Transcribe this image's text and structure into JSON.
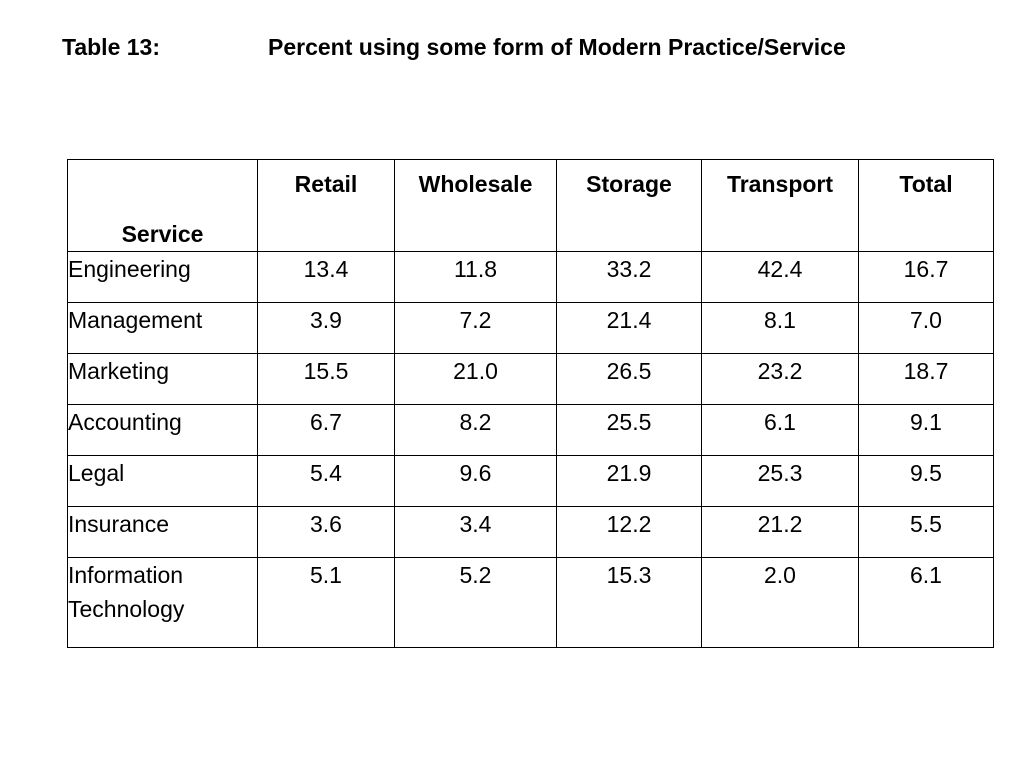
{
  "title": {
    "label": "Table 13:",
    "text": "Percent using some form of Modern Practice/Service"
  },
  "table": {
    "headers": [
      "Service",
      "Retail",
      "Wholesale",
      "Storage",
      "Transport",
      "Total"
    ],
    "rows": [
      {
        "label": "Engineering",
        "values": [
          "13.4",
          "11.8",
          "33.2",
          "42.4",
          "16.7"
        ]
      },
      {
        "label": "Management",
        "values": [
          "3.9",
          "7.2",
          "21.4",
          "8.1",
          "7.0"
        ]
      },
      {
        "label": "Marketing",
        "values": [
          "15.5",
          "21.0",
          "26.5",
          "23.2",
          "18.7"
        ]
      },
      {
        "label": "Accounting",
        "values": [
          "6.7",
          "8.2",
          "25.5",
          "6.1",
          "9.1"
        ]
      },
      {
        "label": "Legal",
        "values": [
          "5.4",
          "9.6",
          "21.9",
          "25.3",
          "9.5"
        ]
      },
      {
        "label": "Insurance",
        "values": [
          "3.6",
          "3.4",
          "12.2",
          "21.2",
          "5.5"
        ]
      },
      {
        "label": "Information\nTechnology",
        "values": [
          "5.1",
          "5.2",
          "15.3",
          "2.0",
          "6.1"
        ]
      }
    ]
  }
}
